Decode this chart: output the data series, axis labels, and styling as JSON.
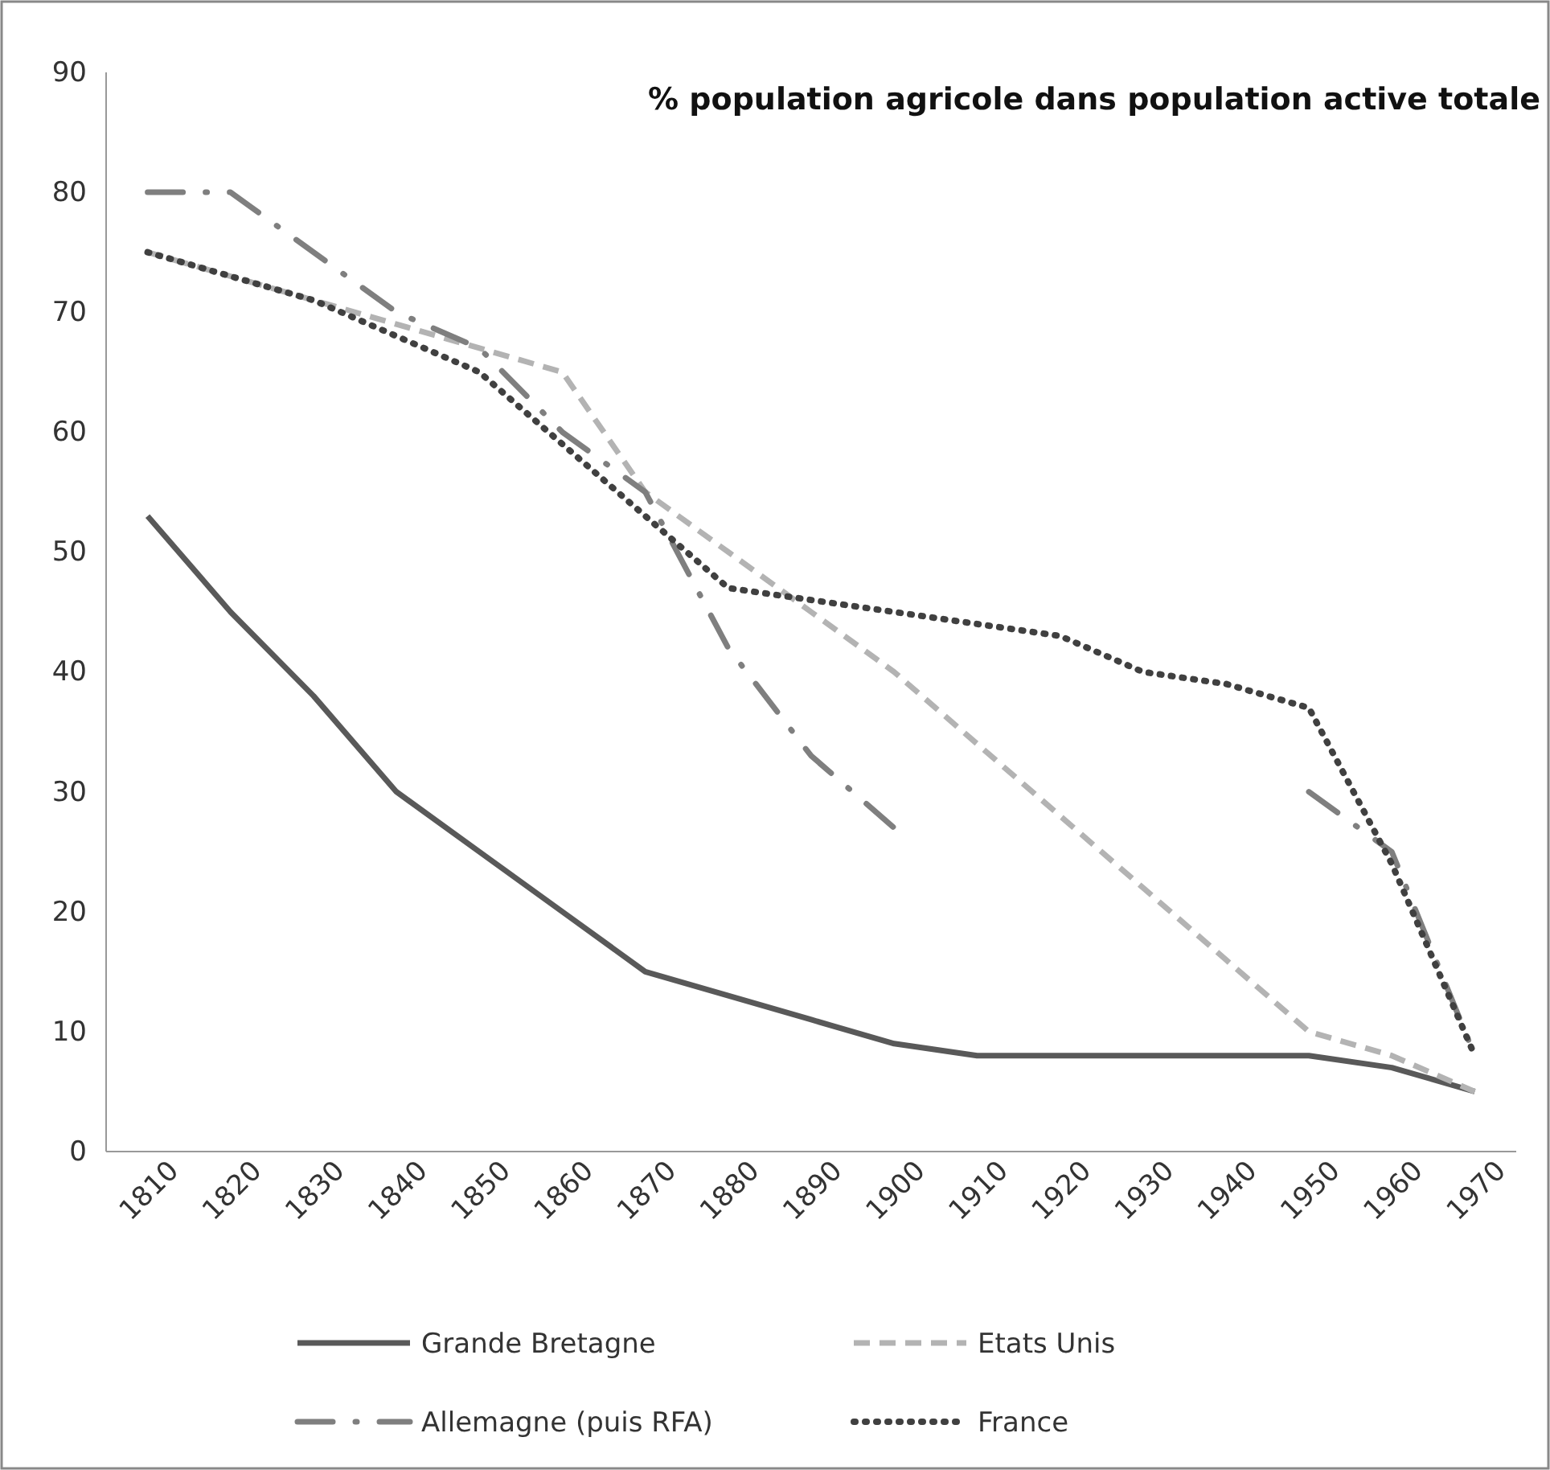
{
  "chart_data": {
    "type": "line",
    "title": "% population agricole dans population active totale",
    "categories": [
      "1810",
      "1820",
      "1830",
      "1840",
      "1850",
      "1860",
      "1870",
      "1880",
      "1890",
      "1900",
      "1910",
      "1920",
      "1930",
      "1940",
      "1950",
      "1960",
      "1970"
    ],
    "series": [
      {
        "name": "Grande Bretagne",
        "color": "#595959",
        "line_style": "solid",
        "values": [
          53,
          45,
          38,
          30,
          25,
          20,
          15,
          13,
          11,
          9,
          8,
          8,
          8,
          8,
          8,
          7,
          5
        ]
      },
      {
        "name": "Etats Unis",
        "color": "#b3b3b3",
        "line_style": "dashed",
        "values": [
          75,
          73,
          71,
          69,
          67,
          65,
          55,
          50,
          45,
          40,
          34,
          28,
          22,
          16,
          10,
          8,
          5
        ]
      },
      {
        "name": "Allemagne (puis RFA)",
        "color": "#7f7f7f",
        "line_style": "dashdot",
        "values": [
          80,
          80,
          75,
          70,
          67,
          60,
          55,
          42,
          33,
          27,
          null,
          null,
          null,
          null,
          30,
          25,
          8
        ]
      },
      {
        "name": "France",
        "color": "#404040",
        "line_style": "dotted",
        "values": [
          75,
          73,
          71,
          68,
          65,
          59,
          53,
          47,
          46,
          45,
          44,
          43,
          40,
          39,
          37,
          24,
          8
        ]
      }
    ],
    "ylim": [
      0,
      90
    ],
    "yticks": [
      0,
      10,
      20,
      30,
      40,
      50,
      60,
      70,
      80,
      90
    ],
    "grid": false,
    "legend": "bottom",
    "marker": "none"
  }
}
